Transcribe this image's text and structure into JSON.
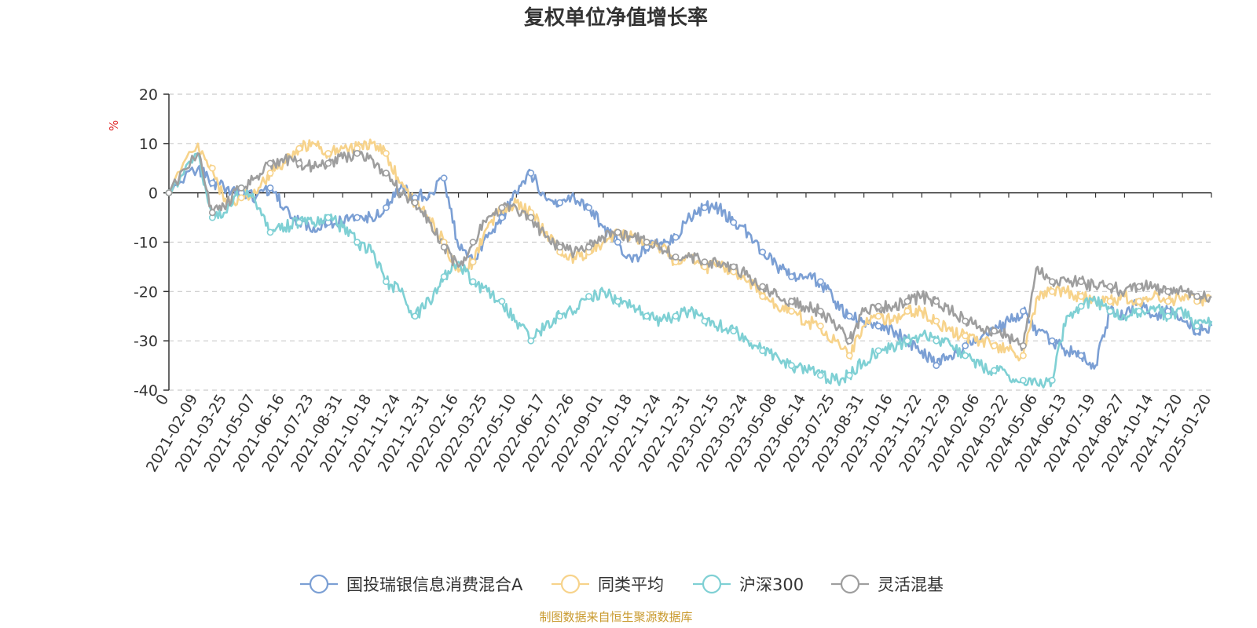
{
  "chart_data": {
    "type": "line",
    "title": "复权单位净值增长率",
    "ylabel": "%",
    "ylim": [
      -40,
      20
    ],
    "y_ticks": [
      20,
      10,
      0,
      -10,
      -20,
      -30,
      -40
    ],
    "x_tick_labels": [
      "0",
      "2021-02-09",
      "2021-03-25",
      "2021-05-07",
      "2021-06-16",
      "2021-07-23",
      "2021-08-31",
      "2021-10-18",
      "2021-11-24",
      "2021-12-31",
      "2022-02-16",
      "2022-03-25",
      "2022-05-10",
      "2022-06-17",
      "2022-07-26",
      "2022-09-01",
      "2022-10-18",
      "2022-11-24",
      "2022-12-31",
      "2023-02-15",
      "2023-03-24",
      "2023-05-08",
      "2023-06-14",
      "2023-07-25",
      "2023-08-31",
      "2023-10-16",
      "2023-11-22",
      "2023-12-29",
      "2024-02-06",
      "2024-03-22",
      "2024-05-06",
      "2024-06-13",
      "2024-07-19",
      "2024-08-27",
      "2024-10-14",
      "2024-11-20",
      "2025-01-20"
    ],
    "x_range": [
      0,
      36
    ],
    "grid": true,
    "legend": "bottom-center",
    "series": [
      {
        "name": "国投瑞银信息消费混合A",
        "color": "#7b9fd4",
        "x": [
          0,
          1,
          1.5,
          2,
          2.5,
          3,
          3.5,
          4,
          4.5,
          5,
          5.5,
          6,
          6.5,
          7,
          7.5,
          8,
          8.5,
          9,
          9.5,
          10,
          10.5,
          11,
          11.5,
          12,
          12.5,
          13,
          13.5,
          14,
          14.5,
          15,
          15.5,
          16,
          16.5,
          17,
          17.5,
          18,
          18.5,
          19,
          19.5,
          20,
          20.5,
          21,
          21.5,
          22,
          22.5,
          23,
          23.5,
          24,
          24.5,
          25,
          25.5,
          26,
          26.5,
          27,
          27.5,
          28,
          28.5,
          29,
          29.5,
          30,
          30.5,
          31,
          31.5,
          32,
          32.5,
          33,
          33.5,
          34,
          34.5,
          35,
          35.5,
          36
        ],
        "y": [
          0,
          5,
          2,
          1,
          0,
          -1,
          1,
          -3,
          -6,
          -7,
          -6,
          -6,
          -5,
          -5,
          -3,
          1,
          -1,
          0,
          3,
          -11,
          -14,
          -9,
          -5,
          0,
          4,
          -1,
          -2,
          -1,
          -3,
          -7,
          -10,
          -14,
          -11,
          -10,
          -9,
          -5,
          -3,
          -3,
          -6,
          -8,
          -12,
          -15,
          -17,
          -17,
          -18,
          -22,
          -25,
          -26,
          -27,
          -28,
          -30,
          -32,
          -35,
          -33,
          -31,
          -30,
          -28,
          -26,
          -24,
          -28,
          -30,
          -32,
          -33,
          -35,
          -24,
          -25,
          -22,
          -25,
          -24,
          -26,
          -28,
          -27
        ]
      },
      {
        "name": "同类平均",
        "color": "#f7d38b",
        "x": [
          0,
          1,
          1.5,
          2,
          2.5,
          3,
          3.5,
          4,
          4.5,
          5,
          5.5,
          6,
          6.5,
          7,
          7.5,
          8,
          8.5,
          9,
          9.5,
          10,
          10.5,
          11,
          11.5,
          12,
          12.5,
          13,
          13.5,
          14,
          14.5,
          15,
          15.5,
          16,
          16.5,
          17,
          17.5,
          18,
          18.5,
          19,
          19.5,
          20,
          20.5,
          21,
          21.5,
          22,
          22.5,
          23,
          23.5,
          24,
          24.5,
          25,
          25.5,
          26,
          26.5,
          27,
          27.5,
          28,
          28.5,
          29,
          29.5,
          30,
          30.5,
          31,
          31.5,
          32,
          32.5,
          33,
          33.5,
          34,
          34.5,
          35,
          35.5,
          36
        ],
        "y": [
          0,
          10,
          5,
          -3,
          -1,
          0,
          4,
          6,
          9,
          10,
          8,
          9,
          9,
          10,
          8,
          2,
          -2,
          -5,
          -10,
          -16,
          -14,
          -7,
          -3,
          -2,
          -4,
          -8,
          -12,
          -13,
          -12,
          -10,
          -8,
          -9,
          -10,
          -11,
          -14,
          -13,
          -15,
          -15,
          -16,
          -18,
          -21,
          -23,
          -24,
          -26,
          -27,
          -30,
          -33,
          -27,
          -25,
          -26,
          -24,
          -24,
          -26,
          -28,
          -29,
          -30,
          -31,
          -32,
          -33,
          -21,
          -20,
          -20,
          -21,
          -22,
          -22,
          -21,
          -22,
          -21,
          -22,
          -21,
          -22,
          -21
        ]
      },
      {
        "name": "沪深300",
        "color": "#7fd0d4",
        "x": [
          0,
          1,
          1.5,
          2,
          2.5,
          3,
          3.5,
          4,
          4.5,
          5,
          5.5,
          6,
          6.5,
          7,
          7.5,
          8,
          8.5,
          9,
          9.5,
          10,
          10.5,
          11,
          11.5,
          12,
          12.5,
          13,
          13.5,
          14,
          14.5,
          15,
          15.5,
          16,
          16.5,
          17,
          17.5,
          18,
          18.5,
          19,
          19.5,
          20,
          20.5,
          21,
          21.5,
          22,
          22.5,
          23,
          23.5,
          24,
          24.5,
          25,
          25.5,
          26,
          26.5,
          27,
          27.5,
          28,
          28.5,
          29,
          29.5,
          30,
          30.5,
          31,
          31.5,
          32,
          32.5,
          33,
          33.5,
          34,
          34.5,
          35,
          35.5,
          36
        ],
        "y": [
          0,
          8,
          -5,
          -4,
          1,
          -2,
          -8,
          -7,
          -6,
          -6,
          -5,
          -7,
          -10,
          -12,
          -18,
          -20,
          -25,
          -22,
          -17,
          -14,
          -18,
          -20,
          -22,
          -26,
          -30,
          -27,
          -25,
          -24,
          -21,
          -20,
          -22,
          -23,
          -25,
          -26,
          -25,
          -24,
          -26,
          -27,
          -28,
          -30,
          -32,
          -33,
          -35,
          -36,
          -37,
          -38,
          -37,
          -34,
          -32,
          -31,
          -30,
          -29,
          -30,
          -31,
          -33,
          -35,
          -36,
          -37,
          -38,
          -39,
          -38,
          -25,
          -23,
          -22,
          -24,
          -25,
          -24,
          -23,
          -25,
          -24,
          -27,
          -26
        ]
      },
      {
        "name": "灵活混基",
        "color": "#9e9e9e",
        "x": [
          0,
          1,
          1.5,
          2,
          2.5,
          3,
          3.5,
          4,
          4.5,
          5,
          5.5,
          6,
          6.5,
          7,
          7.5,
          8,
          8.5,
          9,
          9.5,
          10,
          10.5,
          11,
          11.5,
          12,
          12.5,
          13,
          13.5,
          14,
          14.5,
          15,
          15.5,
          16,
          16.5,
          17,
          17.5,
          18,
          18.5,
          19,
          19.5,
          20,
          20.5,
          21,
          21.5,
          22,
          22.5,
          23,
          23.5,
          24,
          24.5,
          25,
          25.5,
          26,
          26.5,
          27,
          27.5,
          28,
          28.5,
          29,
          29.5,
          30,
          30.5,
          31,
          31.5,
          32,
          32.5,
          33,
          33.5,
          34,
          34.5,
          35,
          35.5,
          36
        ],
        "y": [
          0,
          8,
          -4,
          -2,
          1,
          3,
          6,
          7,
          6,
          5,
          6,
          7,
          8,
          7,
          4,
          0,
          -2,
          -6,
          -11,
          -15,
          -10,
          -5,
          -3,
          -3,
          -5,
          -9,
          -11,
          -12,
          -11,
          -9,
          -8,
          -9,
          -10,
          -11,
          -13,
          -13,
          -14,
          -14,
          -15,
          -17,
          -19,
          -21,
          -22,
          -23,
          -24,
          -27,
          -30,
          -24,
          -23,
          -23,
          -22,
          -21,
          -22,
          -24,
          -26,
          -27,
          -28,
          -29,
          -31,
          -15,
          -18,
          -18,
          -18,
          -19,
          -19,
          -20,
          -19,
          -19,
          -20,
          -20,
          -21,
          -21
        ]
      }
    ]
  },
  "source_text": "制图数据来自恒生聚源数据库"
}
